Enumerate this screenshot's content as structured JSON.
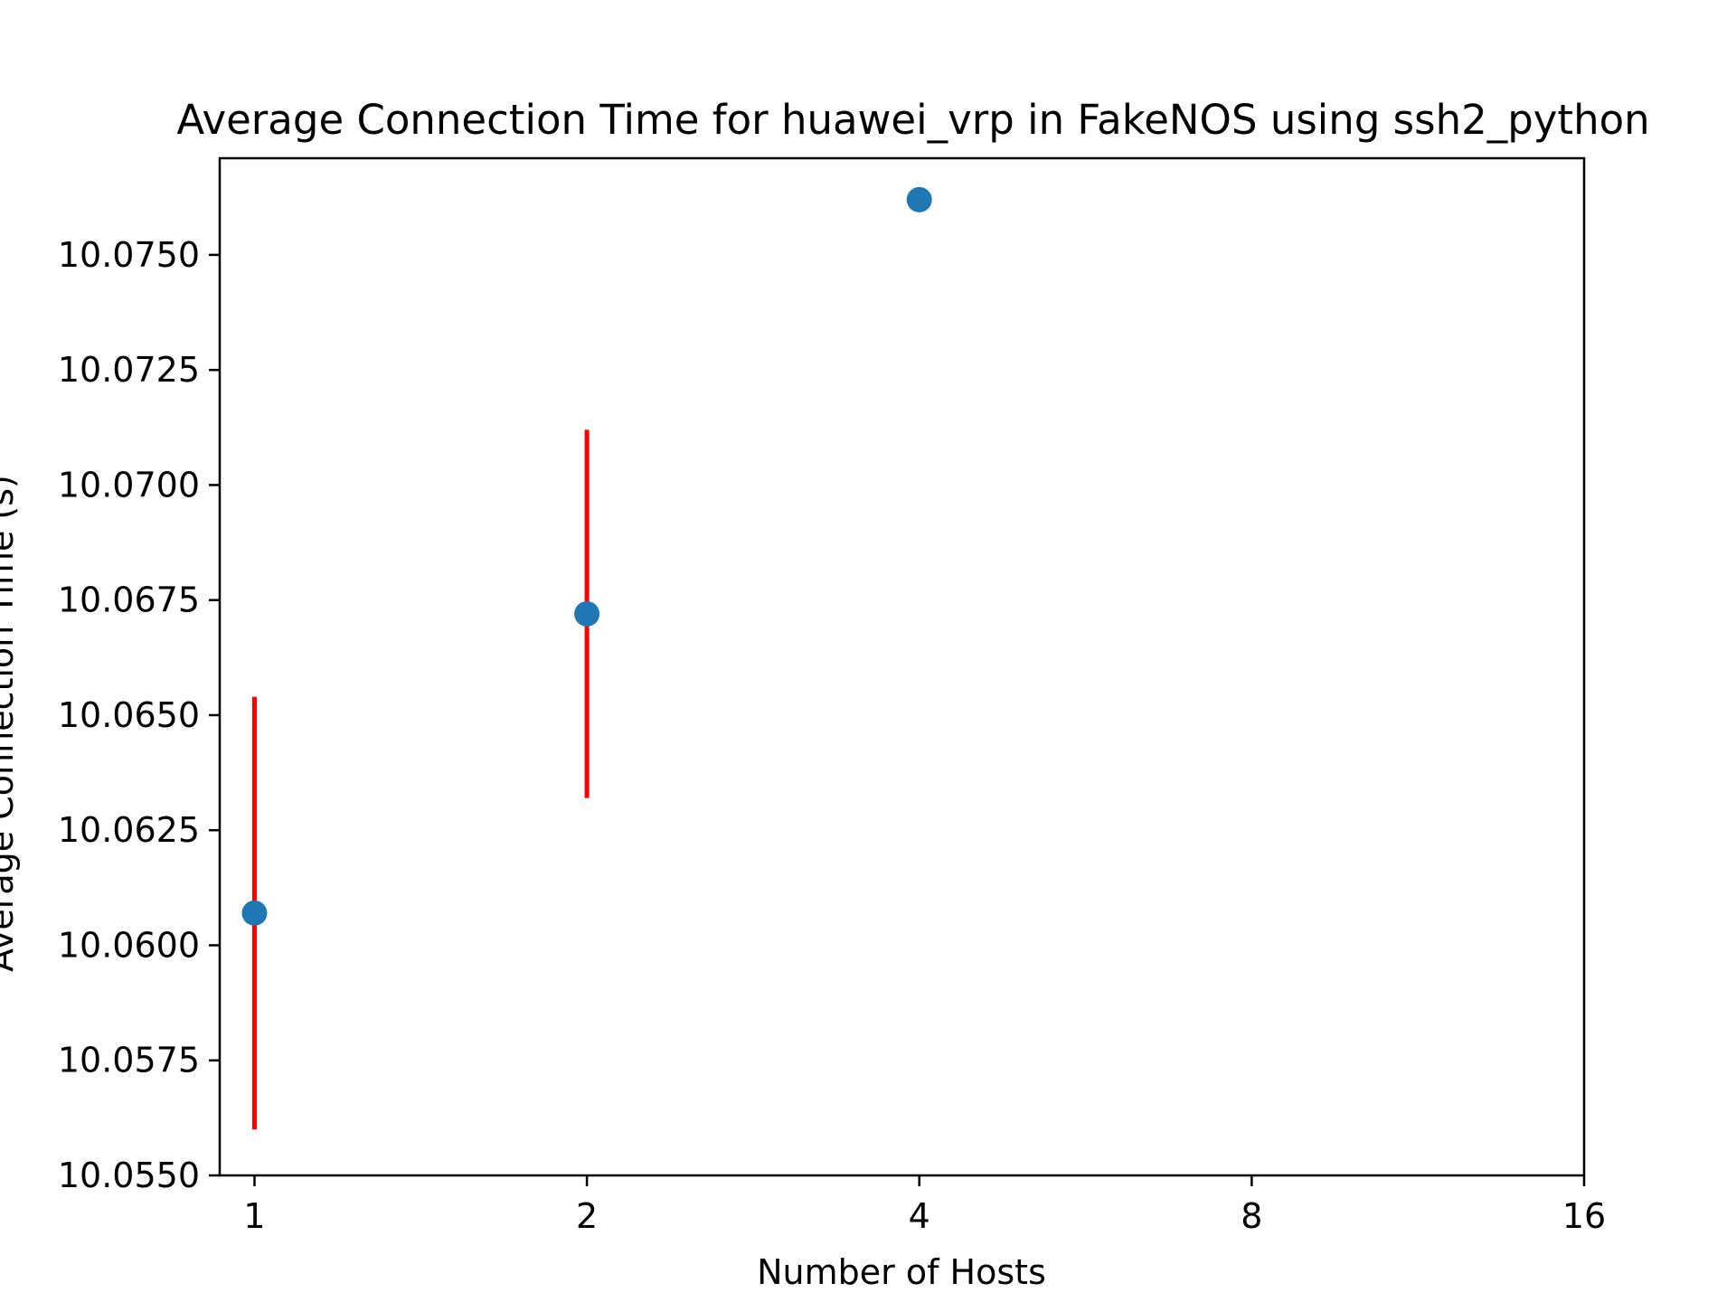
{
  "chart_data": {
    "type": "scatter",
    "title": "Average Connection Time for huawei_vrp in FakeNOS using ssh2_python",
    "xlabel": "Number of Hosts",
    "ylabel": "Average Connection Time (s)",
    "x_scale": "log2",
    "x_ticks": [
      1,
      2,
      4,
      8,
      16
    ],
    "x_tick_labels": [
      "1",
      "2",
      "4",
      "8",
      "16"
    ],
    "xlim": [
      0.93,
      16
    ],
    "ylim": [
      10.055,
      10.0771
    ],
    "y_ticks": [
      10.055,
      10.0575,
      10.06,
      10.0625,
      10.065,
      10.0675,
      10.07,
      10.0725,
      10.075
    ],
    "y_tick_labels": [
      "10.0550",
      "10.0575",
      "10.0600",
      "10.0625",
      "10.0650",
      "10.0675",
      "10.0700",
      "10.0725",
      "10.0750"
    ],
    "grid": false,
    "series": [
      {
        "points": [
          {
            "x": 1,
            "y": 10.0607,
            "err_low": 10.056,
            "err_high": 10.0654
          },
          {
            "x": 2,
            "y": 10.0672,
            "err_low": 10.0632,
            "err_high": 10.0712
          },
          {
            "x": 4,
            "y": 10.0762
          }
        ],
        "marker_color": "#1f77b4",
        "errorbar_color": "#ff0000"
      }
    ]
  }
}
